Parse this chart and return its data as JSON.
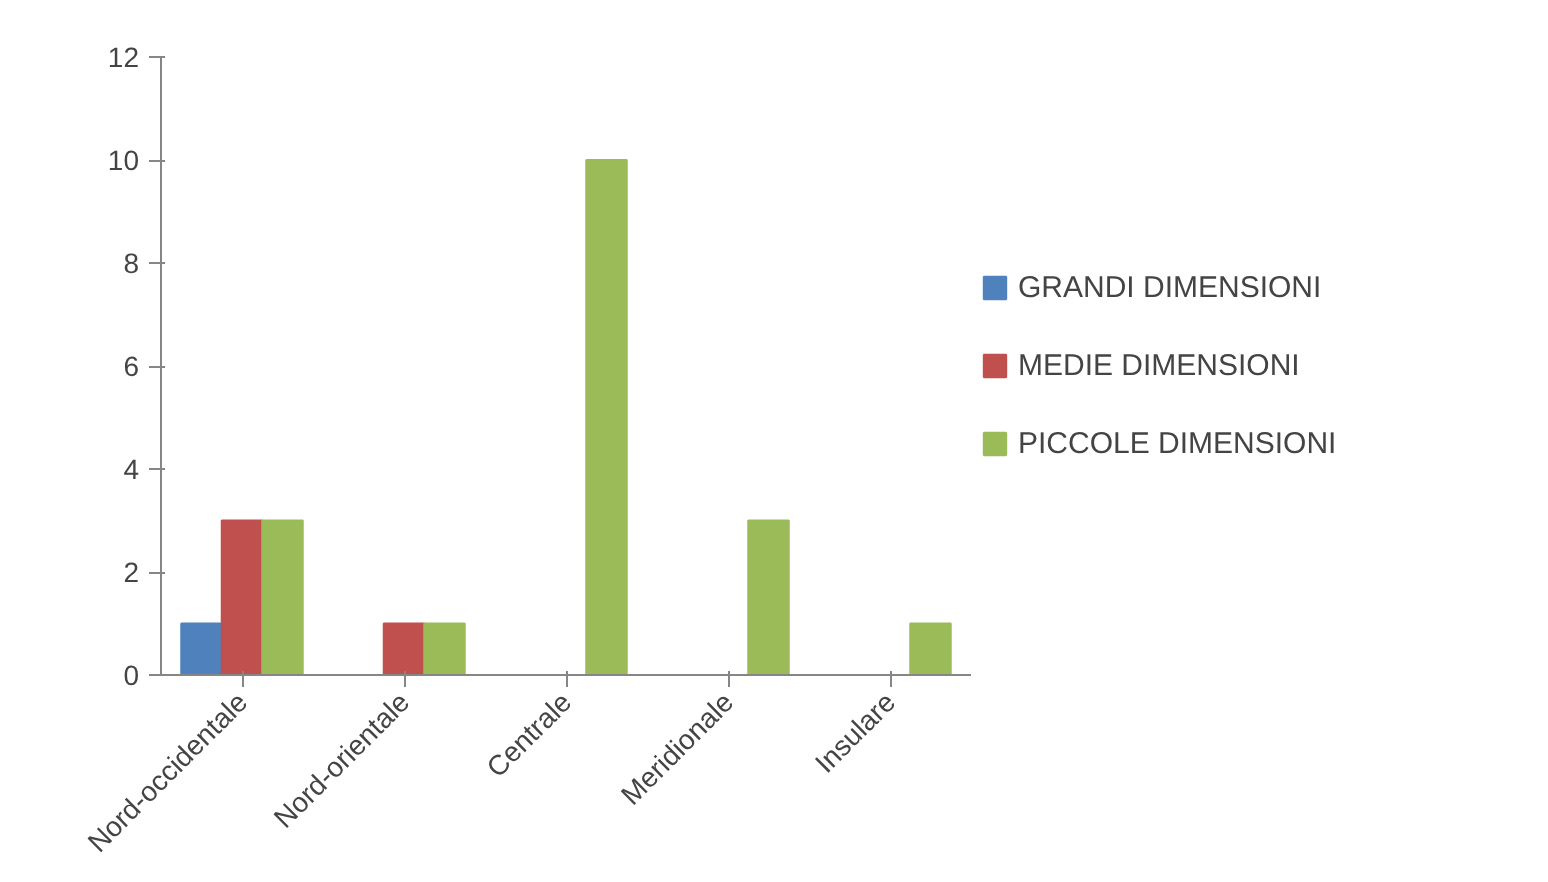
{
  "chart_data": {
    "type": "bar",
    "categories": [
      "Nord-occidentale",
      "Nord-orientale",
      "Centrale",
      "Meridionale",
      "Insulare"
    ],
    "series": [
      {
        "name": "GRANDI DIMENSIONI",
        "color": "#4f81bd",
        "values": [
          1,
          null,
          null,
          null,
          null
        ]
      },
      {
        "name": "MEDIE DIMENSIONI",
        "color": "#c0504d",
        "values": [
          3,
          1,
          null,
          null,
          null
        ]
      },
      {
        "name": "PICCOLE DIMENSIONI",
        "color": "#9bbb59",
        "values": [
          3,
          1,
          10,
          3,
          1
        ]
      }
    ],
    "ylim": [
      0,
      12
    ],
    "yticks": [
      0,
      2,
      4,
      6,
      8,
      10,
      12
    ],
    "grid": false,
    "legend": "right"
  }
}
